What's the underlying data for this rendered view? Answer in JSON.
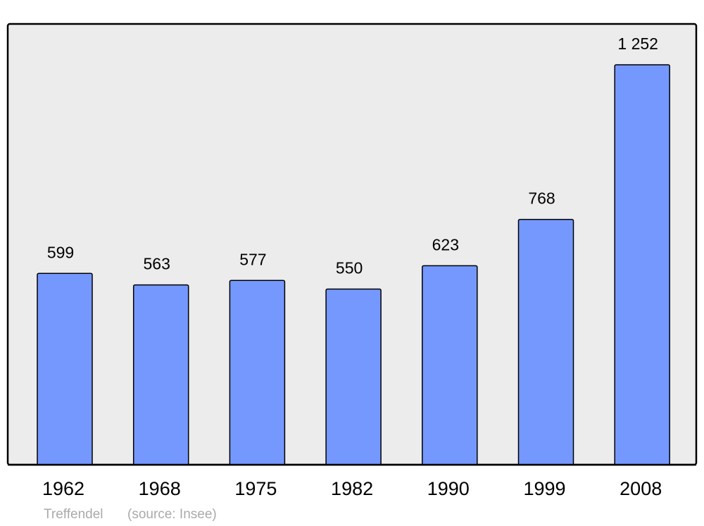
{
  "chart_data": {
    "type": "bar",
    "categories": [
      "1962",
      "1968",
      "1975",
      "1982",
      "1990",
      "1999",
      "2008"
    ],
    "values": [
      599,
      563,
      577,
      550,
      623,
      768,
      1252
    ],
    "value_labels": [
      "599",
      "563",
      "577",
      "550",
      "623",
      "768",
      "1 252"
    ],
    "color": "#7598ff",
    "place": "Treffendel",
    "source": "(source: Insee)"
  }
}
